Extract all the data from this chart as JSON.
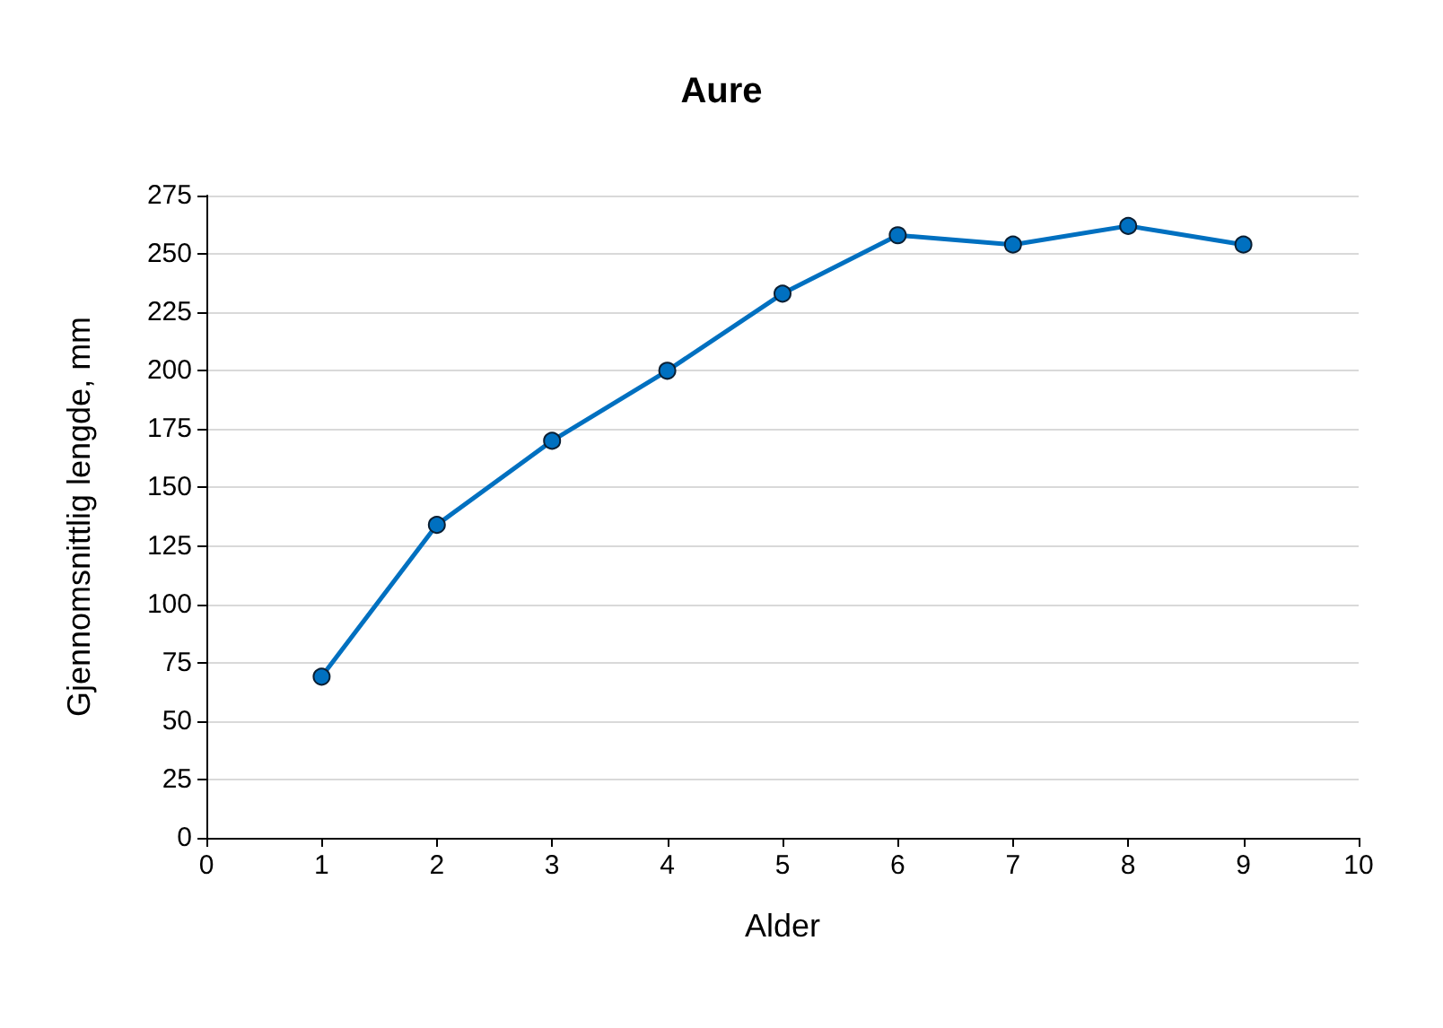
{
  "chart_data": {
    "type": "line",
    "title": "Aure",
    "xlabel": "Alder",
    "ylabel": "Gjennomsnittlig lengde, mm",
    "x": [
      1,
      2,
      3,
      4,
      5,
      6,
      7,
      8,
      9
    ],
    "series": [
      {
        "color": "#0070c0",
        "values": [
          69,
          134,
          170,
          200,
          233,
          258,
          254,
          262,
          254
        ]
      }
    ],
    "xlim": [
      0,
      10
    ],
    "xticks": [
      0,
      1,
      2,
      3,
      4,
      5,
      6,
      7,
      8,
      9,
      10
    ],
    "ylim": [
      0,
      275
    ],
    "yticks": [
      0,
      25,
      50,
      75,
      100,
      125,
      150,
      175,
      200,
      225,
      250,
      275
    ],
    "grid": "y",
    "marker": "circle",
    "line_style": "solid"
  }
}
